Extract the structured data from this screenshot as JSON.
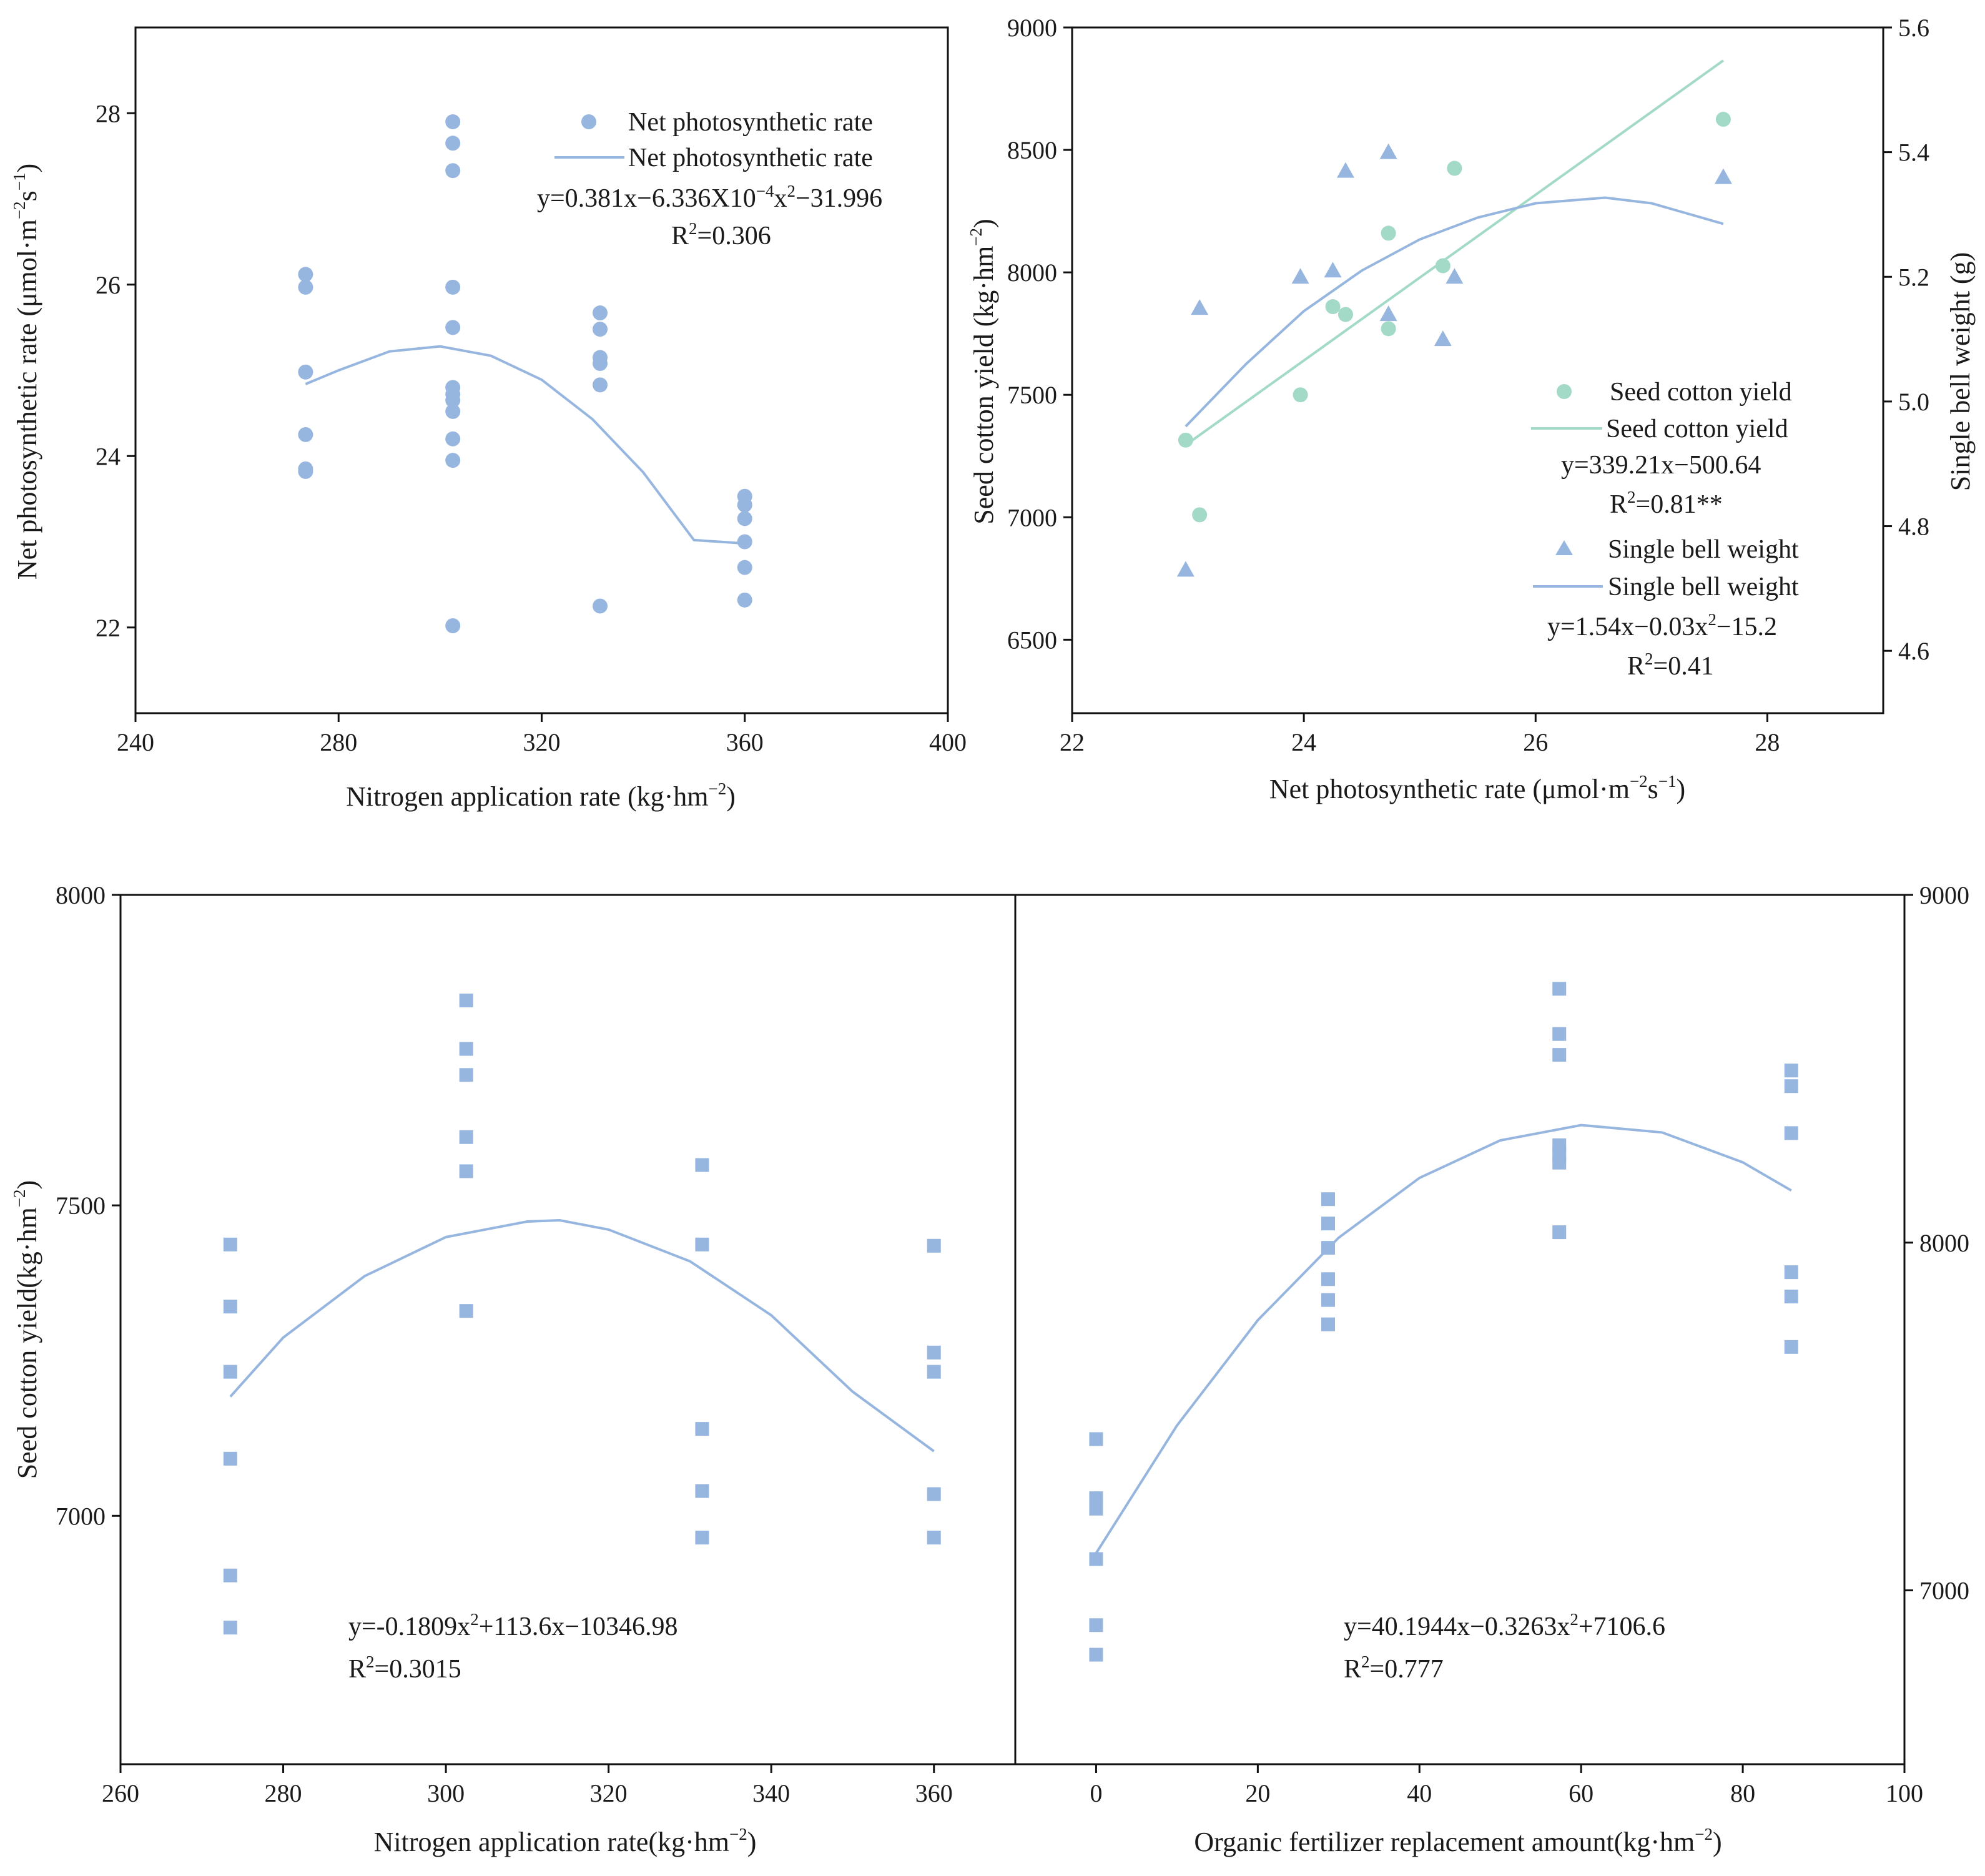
{
  "colors": {
    "blue": "#97b6df",
    "green": "#a3d9c7",
    "text": "#1a1a1a",
    "axis": "#111111"
  },
  "chart_data": [
    {
      "id": "A",
      "type": "scatter",
      "xlabel": "Nitrogen application rate (kg·hm⁻²)",
      "ylabel": "Net photosynthetic rate (μmol·m⁻²s⁻¹)",
      "xlim": [
        240,
        400
      ],
      "ylim": [
        21,
        29
      ],
      "xticks": [
        "240",
        "280",
        "320",
        "360",
        "400"
      ],
      "yticks": [
        "22",
        "24",
        "26",
        "28"
      ],
      "series": [
        {
          "name": "Net photosynthetic rate",
          "kind": "points",
          "marker": "circle",
          "points": [
            [
              273.5,
              26.12
            ],
            [
              273.5,
              25.97
            ],
            [
              273.5,
              24.98
            ],
            [
              273.5,
              24.25
            ],
            [
              273.5,
              23.85
            ],
            [
              273.5,
              23.82
            ],
            [
              302.5,
              27.9
            ],
            [
              302.5,
              27.65
            ],
            [
              302.5,
              27.33
            ],
            [
              302.5,
              25.97
            ],
            [
              302.5,
              25.5
            ],
            [
              302.5,
              24.8
            ],
            [
              302.5,
              24.72
            ],
            [
              302.5,
              24.65
            ],
            [
              302.5,
              24.52
            ],
            [
              302.5,
              24.2
            ],
            [
              302.5,
              23.95
            ],
            [
              302.5,
              22.02
            ],
            [
              331.5,
              25.67
            ],
            [
              331.5,
              25.48
            ],
            [
              331.5,
              25.15
            ],
            [
              331.5,
              25.08
            ],
            [
              331.5,
              24.83
            ],
            [
              331.5,
              22.25
            ],
            [
              360,
              23.53
            ],
            [
              360,
              23.43
            ],
            [
              360,
              23.27
            ],
            [
              360,
              23.0
            ],
            [
              360,
              22.7
            ],
            [
              360,
              22.32
            ]
          ]
        },
        {
          "name": "Net photosynthetic rate",
          "kind": "curve",
          "points": [
            [
              273.5,
              24.84
            ],
            [
              280,
              25.0
            ],
            [
              290,
              25.22
            ],
            [
              300,
              25.28
            ],
            [
              310,
              25.17
            ],
            [
              320,
              24.89
            ],
            [
              330,
              24.43
            ],
            [
              340,
              23.81
            ],
            [
              350,
              23.02
            ],
            [
              360,
              22.98
            ]
          ]
        }
      ],
      "legend": [
        {
          "marker": "circle",
          "label": "Net photosynthetic rate"
        },
        {
          "marker": "line",
          "label": "Net photosynthetic rate"
        }
      ],
      "annotations": {
        "equation": "y=0.381x−6.336X10",
        "equation_exp": "−4",
        "equation_tail": "x",
        "equation_tail_exp": "2",
        "equation_end": "−31.996",
        "r2_prefix": "R",
        "r2_exp": "2",
        "r2_value": "=0.306"
      }
    },
    {
      "id": "B",
      "type": "scatter",
      "xlabel": "Net photosynthetic rate (μmol·m⁻²s⁻¹)",
      "ylabel": "Seed cotton yield (kg·hm⁻²)",
      "y2label": "Single bell weight (g)",
      "xlim": [
        22,
        29
      ],
      "ylim": [
        6200,
        9000
      ],
      "y2lim": [
        4.5,
        5.6
      ],
      "xticks": [
        "22",
        "24",
        "26",
        "28"
      ],
      "yticks": [
        "6500",
        "7000",
        "7500",
        "8000",
        "8500",
        "9000"
      ],
      "y2ticks": [
        "4.6",
        "4.8",
        "5.0",
        "5.2",
        "5.4",
        "5.6"
      ],
      "series": [
        {
          "name": "Seed cotton yield",
          "kind": "points",
          "marker": "circle",
          "axis": "left",
          "points": [
            [
              22.98,
              7315
            ],
            [
              23.1,
              7010
            ],
            [
              23.97,
              7500
            ],
            [
              24.25,
              7860
            ],
            [
              24.36,
              7828
            ],
            [
              24.73,
              7770
            ],
            [
              24.73,
              8160
            ],
            [
              25.2,
              8027
            ],
            [
              25.3,
              8425
            ],
            [
              27.62,
              8625
            ]
          ]
        },
        {
          "name": "Seed cotton yield",
          "kind": "curve",
          "axis": "left",
          "points": [
            [
              22.98,
              7295
            ],
            [
              27.62,
              8865
            ]
          ]
        },
        {
          "name": "Single bell weight",
          "kind": "points",
          "marker": "triangle",
          "axis": "right",
          "points": [
            [
              22.98,
              4.73
            ],
            [
              23.1,
              5.15
            ],
            [
              23.97,
              5.2
            ],
            [
              24.25,
              5.21
            ],
            [
              24.36,
              5.37
            ],
            [
              24.73,
              5.4
            ],
            [
              24.73,
              5.14
            ],
            [
              25.2,
              5.1
            ],
            [
              25.3,
              5.2
            ],
            [
              27.62,
              5.36
            ]
          ]
        },
        {
          "name": "Single bell weight",
          "kind": "curve",
          "axis": "right",
          "points": [
            [
              22.98,
              4.96
            ],
            [
              23.5,
              5.06
            ],
            [
              24.0,
              5.145
            ],
            [
              24.5,
              5.21
            ],
            [
              25.0,
              5.26
            ],
            [
              25.5,
              5.295
            ],
            [
              26.0,
              5.318
            ],
            [
              26.6,
              5.327
            ],
            [
              27.0,
              5.318
            ],
            [
              27.62,
              5.285
            ]
          ]
        }
      ],
      "legend": [
        {
          "marker": "circle",
          "label": "Seed cotton yield"
        },
        {
          "marker": "line",
          "label": "Seed cotton yield"
        },
        {
          "marker": "triangle",
          "label": "Single bell weight"
        },
        {
          "marker": "line",
          "label": "Single bell weight"
        }
      ],
      "annotations": {
        "eq1": "y=339.21x−500.64",
        "r2_1_prefix": "R",
        "r2_1_exp": "2",
        "r2_1_value": "=0.81**",
        "eq2_a": "y=1.54x−0.03x",
        "eq2_exp": "2",
        "eq2_b": "−15.2",
        "r2_2_prefix": "R",
        "r2_2_exp": "2",
        "r2_2_value": "=0.41"
      }
    },
    {
      "id": "C",
      "type": "scatter",
      "xlabel": "Nitrogen application rate(kg·hm⁻²)",
      "ylabel": "Seed cotton yield(kg·hm⁻²)",
      "xlim": [
        260,
        370
      ],
      "ylim": [
        6600,
        8000
      ],
      "xticks": [
        "260",
        "280",
        "300",
        "320",
        "340",
        "360"
      ],
      "yticks": [
        "7000",
        "7500",
        "8000"
      ],
      "series": [
        {
          "name": "Seed cotton yield",
          "kind": "points",
          "marker": "square",
          "points": [
            [
              273.5,
              7437
            ],
            [
              273.5,
              7337
            ],
            [
              273.5,
              7232
            ],
            [
              273.5,
              7092
            ],
            [
              273.5,
              6904
            ],
            [
              273.5,
              6820
            ],
            [
              302.5,
              7830
            ],
            [
              302.5,
              7752
            ],
            [
              302.5,
              7710
            ],
            [
              302.5,
              7610
            ],
            [
              302.5,
              7555
            ],
            [
              302.5,
              7330
            ],
            [
              331.5,
              7565
            ],
            [
              331.5,
              7437
            ],
            [
              331.5,
              7140
            ],
            [
              331.5,
              7040
            ],
            [
              331.5,
              6965
            ],
            [
              360,
              7435
            ],
            [
              360,
              7263
            ],
            [
              360,
              7232
            ],
            [
              360,
              7035
            ],
            [
              360,
              6965
            ]
          ]
        },
        {
          "name": "Seed cotton yield fit",
          "kind": "curve",
          "points": [
            [
              273.5,
              7192
            ],
            [
              280,
              7287
            ],
            [
              290,
              7386
            ],
            [
              300,
              7449
            ],
            [
              310,
              7474
            ],
            [
              314,
              7476
            ],
            [
              320,
              7461
            ],
            [
              330,
              7410
            ],
            [
              340,
              7323
            ],
            [
              350,
              7200
            ],
            [
              360,
              7104
            ]
          ]
        }
      ],
      "annotations": {
        "eq_a": "y=-0.1809x",
        "eq_exp": "2",
        "eq_b": "+113.6x−10346.98",
        "r2_prefix": "R",
        "r2_exp": "2",
        "r2_value": "=0.3015"
      }
    },
    {
      "id": "D",
      "type": "scatter",
      "xlabel": "Organic fertilizer replacement amount(kg·hm⁻²)",
      "y2label": "",
      "xlim": [
        -10,
        100
      ],
      "y2lim": [
        6500,
        9000
      ],
      "xticks": [
        "0",
        "20",
        "40",
        "60",
        "80",
        "100"
      ],
      "y2ticks": [
        "7000",
        "8000",
        "9000"
      ],
      "series": [
        {
          "name": "Seed cotton yield",
          "kind": "points",
          "marker": "square",
          "axis": "right",
          "points": [
            [
              0,
              7435
            ],
            [
              0,
              7265
            ],
            [
              0,
              7235
            ],
            [
              0,
              7090
            ],
            [
              0,
              6900
            ],
            [
              0,
              6815
            ],
            [
              28.7,
              8125
            ],
            [
              28.7,
              8055
            ],
            [
              28.7,
              7985
            ],
            [
              28.7,
              7895
            ],
            [
              28.7,
              7835
            ],
            [
              28.7,
              7765
            ],
            [
              57.3,
              8730
            ],
            [
              57.3,
              8600
            ],
            [
              57.3,
              8540
            ],
            [
              57.3,
              8280
            ],
            [
              57.3,
              8255
            ],
            [
              57.3,
              8230
            ],
            [
              57.3,
              8030
            ],
            [
              86,
              8495
            ],
            [
              86,
              8450
            ],
            [
              86,
              8315
            ],
            [
              86,
              7915
            ],
            [
              86,
              7845
            ],
            [
              86,
              7700
            ]
          ]
        },
        {
          "name": "Seed cotton yield fit",
          "kind": "curve",
          "axis": "right",
          "points": [
            [
              0,
              7107
            ],
            [
              10,
              7474
            ],
            [
              20,
              7777
            ],
            [
              30,
              8014
            ],
            [
              40,
              8186
            ],
            [
              50,
              8294
            ],
            [
              60,
              8338
            ],
            [
              70,
              8317
            ],
            [
              80,
              8231
            ],
            [
              86,
              8150
            ]
          ]
        }
      ],
      "annotations": {
        "eq_a": "y=40.1944x−0.3263x",
        "eq_exp": "2",
        "eq_b": "+7106.6",
        "r2_prefix": "R",
        "r2_exp": "2",
        "r2_value": "=0.777"
      }
    }
  ],
  "axis_titles": {
    "a_x_main": "Nitrogen application rate (kg·hm",
    "a_x_exp": "−2",
    "a_x_end": ")",
    "a_y_main": "Net photosynthetic rate (μmol·m",
    "a_y_exp1": "−2",
    "a_y_mid": "s",
    "a_y_exp2": "−1",
    "a_y_end": ")",
    "b_x_main": "Net photosynthetic rate (μmol·m",
    "b_x_exp1": "−2",
    "b_x_mid": "s",
    "b_x_exp2": "−1",
    "b_x_end": ")",
    "b_y_main": "Seed cotton yield (kg·hm",
    "b_y_exp": "−2",
    "b_y_end": ")",
    "b_y2": "Single bell weight (g)",
    "c_x_main": "Nitrogen application rate(kg·hm",
    "c_x_exp": "−2",
    "c_x_end": ")",
    "c_y_main": "Seed cotton yield(kg·hm",
    "c_y_exp": "−2",
    "c_y_end": ")",
    "d_x_main": "Organic fertilizer replacement amount(kg·hm",
    "d_x_exp": "−2",
    "d_x_end": ")"
  }
}
